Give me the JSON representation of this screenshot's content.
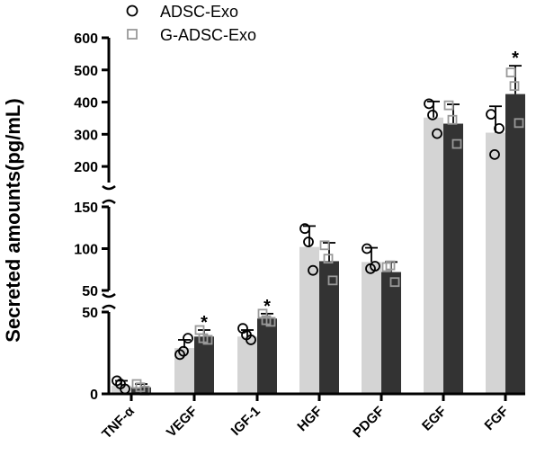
{
  "chart_data": {
    "type": "bar",
    "title": "",
    "xlabel": "",
    "ylabel": "Secreted amounts(pg/mL)",
    "categories": [
      "TNF-α",
      "VEGF",
      "IGF-1",
      "HGF",
      "PDGF",
      "EGF",
      "FGF"
    ],
    "axis_break": true,
    "segments": [
      {
        "ylim": [
          0,
          50
        ],
        "ticks": [
          "0",
          "50"
        ]
      },
      {
        "ylim": [
          50,
          150
        ],
        "ticks": [
          "50",
          "100",
          "150"
        ]
      },
      {
        "ylim": [
          150,
          600
        ],
        "ticks": [
          "200",
          "300",
          "400",
          "500",
          "600"
        ]
      }
    ],
    "legend_position": "top",
    "series": [
      {
        "name": "ADSC-Exo",
        "color": "#d4d4d4",
        "marker": "circle",
        "values": [
          5,
          28,
          35,
          102,
          84,
          352,
          305
        ],
        "error": [
          3,
          5,
          4,
          25,
          17,
          50,
          82
        ],
        "points": [
          [
            8,
            3,
            6
          ],
          [
            24,
            34,
            26
          ],
          [
            40,
            33,
            36
          ],
          [
            124,
            74,
            108
          ],
          [
            100,
            79,
            76
          ],
          [
            395,
            302,
            360
          ],
          [
            362,
            318,
            237
          ]
        ]
      },
      {
        "name": "G-ADSC-Exo",
        "color": "#333333",
        "marker": "square",
        "values": [
          4,
          35,
          46,
          85,
          72,
          333,
          425
        ],
        "error": [
          2,
          4,
          3,
          22,
          12,
          60,
          88
        ],
        "points": [
          [
            6,
            2,
            4
          ],
          [
            39,
            33,
            34
          ],
          [
            49,
            44,
            45
          ],
          [
            104,
            62,
            88
          ],
          [
            78,
            60,
            80
          ],
          [
            390,
            270,
            345
          ],
          [
            492,
            335,
            450
          ]
        ]
      }
    ],
    "significance": [
      "",
      "*",
      "*",
      "",
      "",
      "",
      "*"
    ],
    "significance_series": "G-ADSC-Exo"
  }
}
